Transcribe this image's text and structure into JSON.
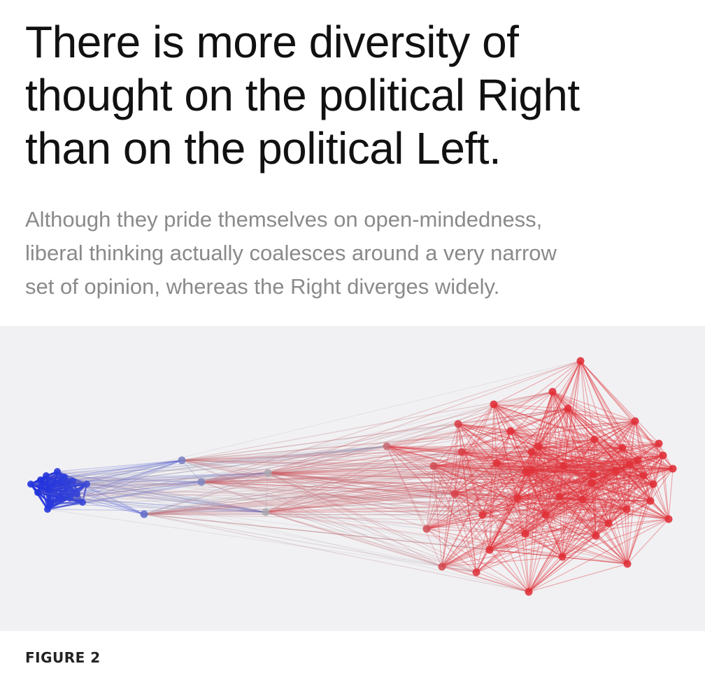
{
  "article": {
    "headline": "There is more diversity of\nthought on the political Right\nthan on the political Left.",
    "subheadline": "Although they pride themselves on open-mindedness,\nliberal thinking actually coalesces around a very narrow\nset of opinion, whereas the Right diverges widely."
  },
  "figure": {
    "caption": "FIGURE 2",
    "colors": {
      "left": "#2233dd",
      "center": "#a8a8b0",
      "right": "#e0323a",
      "background": "#f1f1f3"
    }
  }
}
